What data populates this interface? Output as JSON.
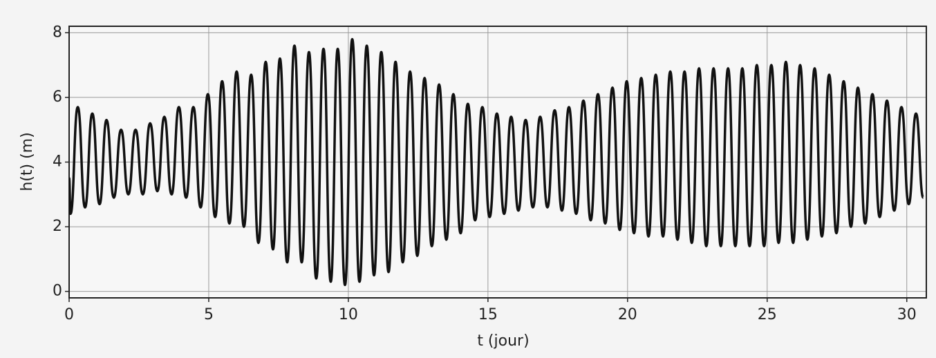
{
  "chart_data": {
    "type": "line",
    "xlabel": "t (jour)",
    "ylabel": "h(t) (m)",
    "xlim": [
      0,
      30.7
    ],
    "ylim": [
      -0.2,
      8.2
    ],
    "xticks": [
      0,
      5,
      10,
      15,
      20,
      25,
      30
    ],
    "yticks": [
      0,
      2,
      4,
      6,
      8
    ],
    "grid": true,
    "x": [
      0,
      0.05,
      0.31,
      0.57,
      0.83,
      1.09,
      1.34,
      1.6,
      1.86,
      2.12,
      2.38,
      2.64,
      2.9,
      3.16,
      3.41,
      3.67,
      3.93,
      4.19,
      4.45,
      4.71,
      4.97,
      5.23,
      5.48,
      5.74,
      6.0,
      6.26,
      6.52,
      6.78,
      7.04,
      7.3,
      7.55,
      7.81,
      8.07,
      8.33,
      8.59,
      8.85,
      9.11,
      9.37,
      9.62,
      9.88,
      10.14,
      10.4,
      10.66,
      10.92,
      11.18,
      11.44,
      11.69,
      11.95,
      12.21,
      12.47,
      12.73,
      12.99,
      13.25,
      13.51,
      13.76,
      14.02,
      14.28,
      14.54,
      14.8,
      15.06,
      15.32,
      15.58,
      15.83,
      16.09,
      16.35,
      16.61,
      16.87,
      17.13,
      17.39,
      17.65,
      17.9,
      18.16,
      18.42,
      18.68,
      18.94,
      19.2,
      19.46,
      19.72,
      19.97,
      20.23,
      20.49,
      20.75,
      21.01,
      21.27,
      21.53,
      21.79,
      22.04,
      22.3,
      22.56,
      22.82,
      23.08,
      23.34,
      23.6,
      23.86,
      24.11,
      24.37,
      24.63,
      24.89,
      25.15,
      25.41,
      25.67,
      25.93,
      26.18,
      26.44,
      26.7,
      26.96,
      27.22,
      27.48,
      27.74,
      28.0,
      28.25,
      28.51,
      28.77,
      29.03,
      29.29,
      29.55,
      29.81,
      30.07,
      30.33,
      30.59
    ],
    "series": [
      {
        "color": "#111111",
        "values": [
          3.5,
          2.4,
          5.7,
          2.6,
          5.5,
          2.7,
          5.3,
          2.9,
          5.0,
          3.0,
          5.0,
          3.0,
          5.2,
          3.1,
          5.4,
          3.0,
          5.7,
          2.9,
          5.7,
          2.6,
          6.1,
          2.3,
          6.5,
          2.1,
          6.8,
          2.0,
          6.7,
          1.5,
          7.1,
          1.3,
          7.2,
          0.9,
          7.6,
          0.9,
          7.4,
          0.4,
          7.5,
          0.3,
          7.5,
          0.2,
          7.8,
          0.3,
          7.6,
          0.5,
          7.4,
          0.6,
          7.1,
          0.9,
          6.8,
          1.1,
          6.6,
          1.4,
          6.4,
          1.6,
          6.1,
          1.8,
          5.8,
          2.2,
          5.7,
          2.3,
          5.5,
          2.4,
          5.4,
          2.5,
          5.3,
          2.6,
          5.4,
          2.6,
          5.6,
          2.5,
          5.7,
          2.4,
          5.9,
          2.2,
          6.1,
          2.1,
          6.3,
          1.9,
          6.5,
          1.8,
          6.6,
          1.7,
          6.7,
          1.7,
          6.8,
          1.6,
          6.8,
          1.5,
          6.9,
          1.4,
          6.9,
          1.4,
          6.9,
          1.4,
          6.9,
          1.4,
          7.0,
          1.4,
          7.0,
          1.5,
          7.1,
          1.5,
          7.0,
          1.6,
          6.9,
          1.7,
          6.7,
          1.8,
          6.5,
          2.0,
          6.3,
          2.1,
          6.1,
          2.3,
          5.9,
          2.5,
          5.7,
          2.7,
          5.5,
          2.9
        ]
      }
    ]
  }
}
